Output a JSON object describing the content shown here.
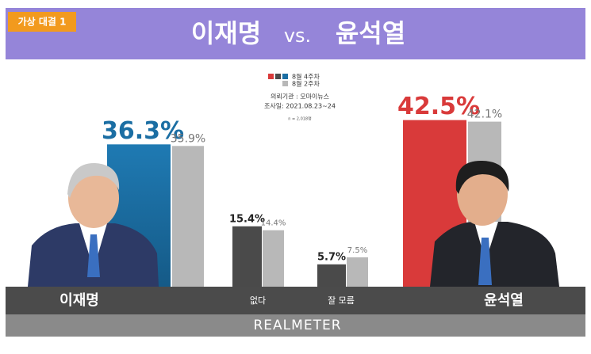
{
  "chart_data": {
    "type": "bar",
    "badge": "가상 대결 1",
    "title": [
      "이재명",
      "vs.",
      "윤석열"
    ],
    "notes": [
      "의뢰기관 : 오마이뉴스",
      "조사일: 2021.08.23~24",
      "n = 2,018명"
    ],
    "categories": [
      "이재명",
      "없다",
      "잘 모름",
      "윤석열"
    ],
    "series": [
      {
        "name": "8월 4주차",
        "colors": [
          "#1b6ea3",
          "#4a4a4a",
          "#4a4a4a",
          "#d93a3a"
        ],
        "values": [
          36.3,
          15.4,
          5.7,
          42.5
        ],
        "value_labels": [
          "36.3%",
          "15.4%",
          "5.7%",
          "42.5%"
        ]
      },
      {
        "name": "8월 2주차",
        "color": "#b8b8b8",
        "values": [
          35.9,
          14.4,
          7.5,
          42.1
        ],
        "value_labels": [
          "35.9%",
          "14.4%",
          "7.5%",
          "42.1%"
        ]
      }
    ],
    "footer": "REALMETER"
  }
}
